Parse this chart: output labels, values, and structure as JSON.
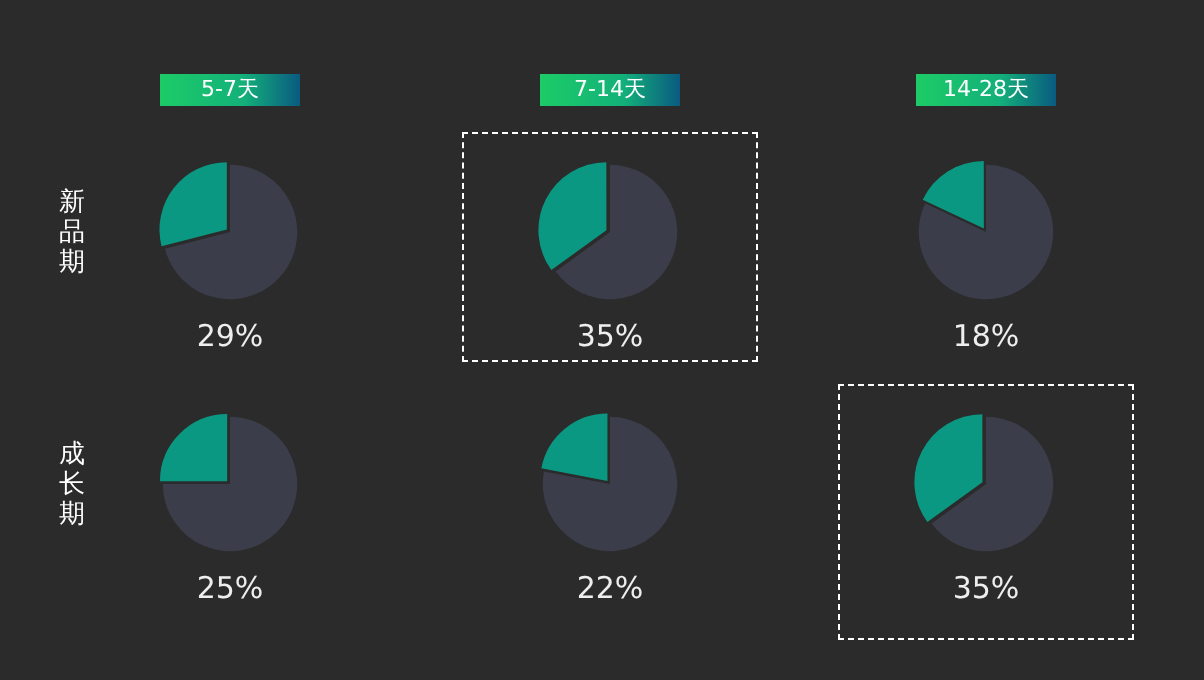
{
  "chart_data": [
    {
      "type": "pie",
      "title": "5-7天",
      "ylabel": "新品期",
      "categories": [
        null,
        null
      ],
      "values": [
        29,
        71
      ],
      "colors": [
        "#0a9882",
        "#3b3d4a"
      ],
      "annotations": [
        "29%"
      ]
    },
    {
      "type": "pie",
      "title": "7-14天",
      "categories": [
        null,
        null
      ],
      "values": [
        35,
        65
      ],
      "colors": [
        "#0a9882",
        "#3b3d4a"
      ],
      "annotations": [
        "35%"
      ]
    },
    {
      "type": "pie",
      "title": "14-28天",
      "categories": [
        null,
        null
      ],
      "values": [
        18,
        82
      ],
      "colors": [
        "#0a9882",
        "#3b3d4a"
      ],
      "annotations": [
        "18%"
      ]
    },
    {
      "type": "pie",
      "ylabel": "成长期",
      "categories": [
        null,
        null
      ],
      "values": [
        25,
        75
      ],
      "colors": [
        "#0a9882",
        "#3b3d4a"
      ],
      "annotations": [
        "25%"
      ]
    },
    {
      "type": "pie",
      "categories": [
        null,
        null
      ],
      "values": [
        22,
        78
      ],
      "colors": [
        "#0a9882",
        "#3b3d4a"
      ],
      "annotations": [
        "22%"
      ]
    },
    {
      "type": "pie",
      "categories": [
        null,
        null
      ],
      "values": [
        35,
        65
      ],
      "colors": [
        "#0a9882",
        "#3b3d4a"
      ],
      "annotations": [
        "35%"
      ]
    }
  ]
}
